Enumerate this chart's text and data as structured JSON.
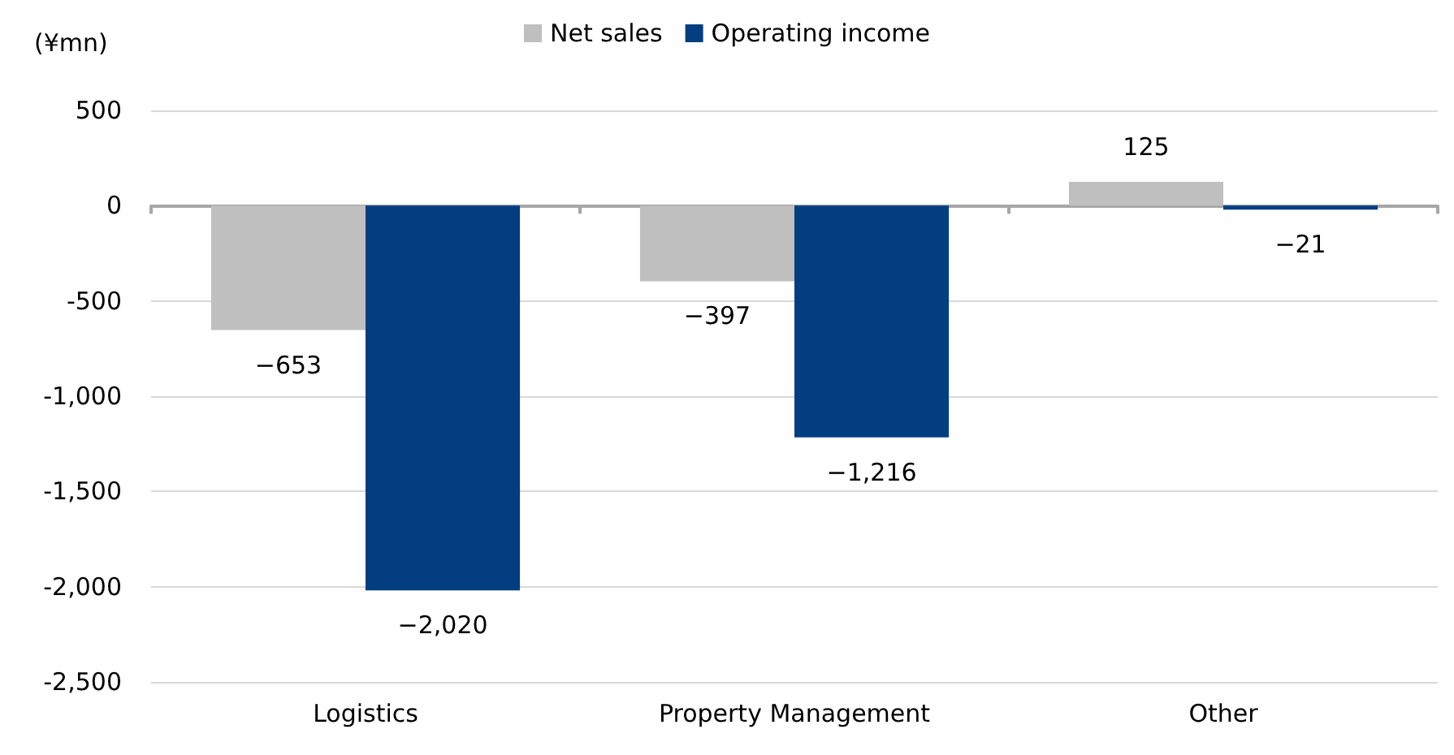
{
  "chart_data": {
    "type": "bar",
    "ylabel": "(¥mn)",
    "categories": [
      "Logistics",
      "Property Management",
      "Other"
    ],
    "series": [
      {
        "name": "Net sales",
        "color": "#bfbfbf",
        "values": [
          -653,
          -397,
          125
        ],
        "value_labels": [
          "−653",
          "−397",
          "125"
        ]
      },
      {
        "name": "Operating income",
        "color": "#023e80",
        "values": [
          -2020,
          -1216,
          -21
        ],
        "value_labels": [
          "−2,020",
          "−1,216",
          "−21"
        ]
      }
    ],
    "ylim": [
      -2500,
      500
    ],
    "yticks": [
      {
        "value": -2500,
        "label": "-2,500"
      },
      {
        "value": -2000,
        "label": "-2,000"
      },
      {
        "value": -1500,
        "label": "-1,500"
      },
      {
        "value": -1000,
        "label": "-1,000"
      },
      {
        "value": -500,
        "label": "-500"
      },
      0,
      500
    ],
    "grid": "y",
    "legend": "top"
  }
}
